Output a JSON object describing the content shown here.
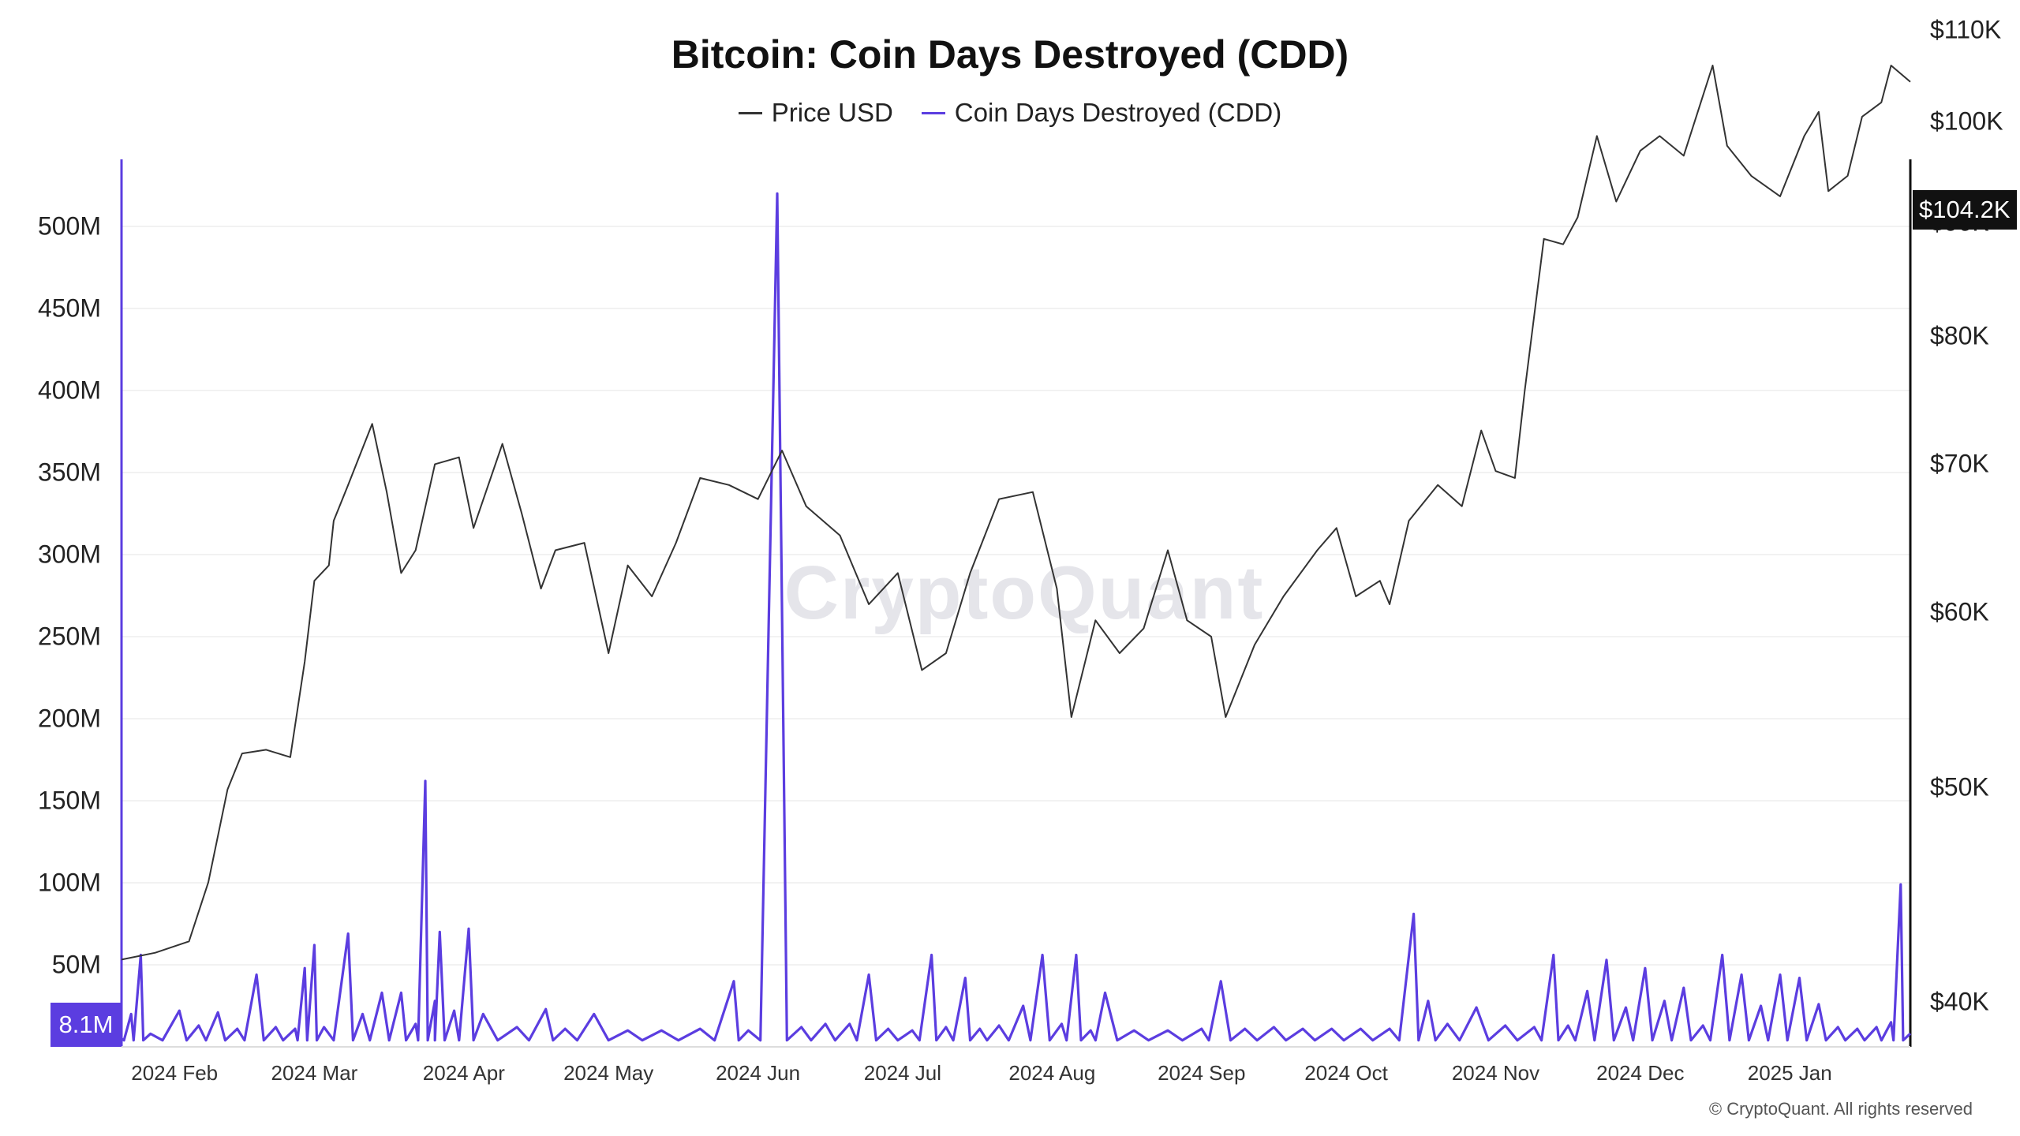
{
  "chart_data": {
    "type": "line",
    "title": "Bitcoin: Coin Days Destroyed (CDD)",
    "legend_position": "top-center",
    "grid": true,
    "x_ticks": [
      "2024 Feb",
      "2024 Mar",
      "2024 Apr",
      "2024 May",
      "2024 Jun",
      "2024 Jul",
      "2024 Aug",
      "2024 Sep",
      "2024 Oct",
      "2024 Nov",
      "2024 Dec",
      "2025 Jan"
    ],
    "xlim": [
      "2024-01-21",
      "2025-01-26"
    ],
    "left_axis": {
      "ticks": [
        "500M",
        "450M",
        "400M",
        "350M",
        "300M",
        "250M",
        "200M",
        "150M",
        "100M",
        "50M"
      ],
      "tick_values": [
        500000000,
        450000000,
        400000000,
        350000000,
        300000000,
        250000000,
        200000000,
        150000000,
        100000000,
        50000000
      ],
      "ylim": [
        0,
        550000000
      ]
    },
    "right_axis": {
      "scale": "log",
      "ticks": [
        "$110K",
        "$100K",
        "$90K",
        "$80K",
        "$70K",
        "$60K",
        "$50K",
        "$40K"
      ],
      "tick_values": [
        110000,
        100000,
        90000,
        80000,
        70000,
        60000,
        50000,
        40000
      ],
      "ylim": [
        37000,
        110000
      ]
    },
    "price_badge": "$104.2K",
    "cdd_badge": "8.1M",
    "series": [
      {
        "name": "Price USD",
        "color": "#333333",
        "axis": "right",
        "points": [
          [
            "2024-01-21",
            41800
          ],
          [
            "2024-01-28",
            42100
          ],
          [
            "2024-02-04",
            42600
          ],
          [
            "2024-02-08",
            45300
          ],
          [
            "2024-02-12",
            49900
          ],
          [
            "2024-02-15",
            51800
          ],
          [
            "2024-02-20",
            52000
          ],
          [
            "2024-02-25",
            51600
          ],
          [
            "2024-02-28",
            57000
          ],
          [
            "2024-03-01",
            62000
          ],
          [
            "2024-03-04",
            63000
          ],
          [
            "2024-03-05",
            66000
          ],
          [
            "2024-03-08",
            68500
          ],
          [
            "2024-03-13",
            73000
          ],
          [
            "2024-03-16",
            68000
          ],
          [
            "2024-03-19",
            62500
          ],
          [
            "2024-03-22",
            64000
          ],
          [
            "2024-03-26",
            70000
          ],
          [
            "2024-03-31",
            70500
          ],
          [
            "2024-04-03",
            65500
          ],
          [
            "2024-04-09",
            71500
          ],
          [
            "2024-04-13",
            66500
          ],
          [
            "2024-04-17",
            61500
          ],
          [
            "2024-04-20",
            64000
          ],
          [
            "2024-04-26",
            64500
          ],
          [
            "2024-05-01",
            57500
          ],
          [
            "2024-05-05",
            63000
          ],
          [
            "2024-05-10",
            61000
          ],
          [
            "2024-05-15",
            64500
          ],
          [
            "2024-05-20",
            69000
          ],
          [
            "2024-05-26",
            68500
          ],
          [
            "2024-06-01",
            67500
          ],
          [
            "2024-06-06",
            71000
          ],
          [
            "2024-06-11",
            67000
          ],
          [
            "2024-06-18",
            65000
          ],
          [
            "2024-06-24",
            60500
          ],
          [
            "2024-06-30",
            62500
          ],
          [
            "2024-07-05",
            56500
          ],
          [
            "2024-07-10",
            57500
          ],
          [
            "2024-07-15",
            62500
          ],
          [
            "2024-07-21",
            67500
          ],
          [
            "2024-07-28",
            68000
          ],
          [
            "2024-08-02",
            61500
          ],
          [
            "2024-08-05",
            53800
          ],
          [
            "2024-08-10",
            59500
          ],
          [
            "2024-08-15",
            57500
          ],
          [
            "2024-08-20",
            59000
          ],
          [
            "2024-08-25",
            64000
          ],
          [
            "2024-08-29",
            59500
          ],
          [
            "2024-09-03",
            58500
          ],
          [
            "2024-09-06",
            53800
          ],
          [
            "2024-09-12",
            58000
          ],
          [
            "2024-09-18",
            61000
          ],
          [
            "2024-09-25",
            64000
          ],
          [
            "2024-09-29",
            65500
          ],
          [
            "2024-10-03",
            61000
          ],
          [
            "2024-10-08",
            62000
          ],
          [
            "2024-10-10",
            60500
          ],
          [
            "2024-10-14",
            66000
          ],
          [
            "2024-10-20",
            68500
          ],
          [
            "2024-10-25",
            67000
          ],
          [
            "2024-10-29",
            72500
          ],
          [
            "2024-11-01",
            69500
          ],
          [
            "2024-11-05",
            69000
          ],
          [
            "2024-11-07",
            75500
          ],
          [
            "2024-11-11",
            88500
          ],
          [
            "2024-11-15",
            88000
          ],
          [
            "2024-11-18",
            90500
          ],
          [
            "2024-11-22",
            98500
          ],
          [
            "2024-11-26",
            92000
          ],
          [
            "2024-12-01",
            97000
          ],
          [
            "2024-12-05",
            98500
          ],
          [
            "2024-12-10",
            96500
          ],
          [
            "2024-12-16",
            106000
          ],
          [
            "2024-12-19",
            97500
          ],
          [
            "2024-12-24",
            94500
          ],
          [
            "2024-12-30",
            92500
          ],
          [
            "2025-01-04",
            98500
          ],
          [
            "2025-01-07",
            101000
          ],
          [
            "2025-01-09",
            93000
          ],
          [
            "2025-01-13",
            94500
          ],
          [
            "2025-01-16",
            100500
          ],
          [
            "2025-01-20",
            102000
          ],
          [
            "2025-01-22",
            106000
          ],
          [
            "2025-01-26",
            104200
          ]
        ]
      },
      {
        "name": "Coin Days Destroyed (CDD)",
        "color": "#5b3de0",
        "axis": "left",
        "baseline": 4000000,
        "points": [
          [
            "2024-01-21",
            5000000
          ],
          [
            "2024-01-23",
            20000000
          ],
          [
            "2024-01-25",
            56000000
          ],
          [
            "2024-01-27",
            8000000
          ],
          [
            "2024-02-02",
            22000000
          ],
          [
            "2024-02-06",
            13000000
          ],
          [
            "2024-02-10",
            21000000
          ],
          [
            "2024-02-14",
            11000000
          ],
          [
            "2024-02-18",
            44000000
          ],
          [
            "2024-02-22",
            12000000
          ],
          [
            "2024-02-26",
            11000000
          ],
          [
            "2024-02-28",
            48000000
          ],
          [
            "2024-03-01",
            62000000
          ],
          [
            "2024-03-03",
            12000000
          ],
          [
            "2024-03-08",
            69000000
          ],
          [
            "2024-03-11",
            20000000
          ],
          [
            "2024-03-15",
            33000000
          ],
          [
            "2024-03-19",
            33000000
          ],
          [
            "2024-03-22",
            14000000
          ],
          [
            "2024-03-24",
            162000000
          ],
          [
            "2024-03-26",
            28000000
          ],
          [
            "2024-03-27",
            70000000
          ],
          [
            "2024-03-30",
            22000000
          ],
          [
            "2024-04-02",
            72000000
          ],
          [
            "2024-04-05",
            20000000
          ],
          [
            "2024-04-12",
            12000000
          ],
          [
            "2024-04-18",
            23000000
          ],
          [
            "2024-04-22",
            11000000
          ],
          [
            "2024-04-28",
            20000000
          ],
          [
            "2024-05-05",
            10000000
          ],
          [
            "2024-05-12",
            10000000
          ],
          [
            "2024-05-20",
            11000000
          ],
          [
            "2024-05-27",
            40000000
          ],
          [
            "2024-05-30",
            10000000
          ],
          [
            "2024-06-05",
            520000000
          ],
          [
            "2024-06-10",
            12000000
          ],
          [
            "2024-06-15",
            14000000
          ],
          [
            "2024-06-20",
            14000000
          ],
          [
            "2024-06-24",
            44000000
          ],
          [
            "2024-06-28",
            11000000
          ],
          [
            "2024-07-03",
            10000000
          ],
          [
            "2024-07-07",
            56000000
          ],
          [
            "2024-07-10",
            12000000
          ],
          [
            "2024-07-14",
            42000000
          ],
          [
            "2024-07-17",
            11000000
          ],
          [
            "2024-07-21",
            13000000
          ],
          [
            "2024-07-26",
            25000000
          ],
          [
            "2024-07-30",
            56000000
          ],
          [
            "2024-08-03",
            14000000
          ],
          [
            "2024-08-06",
            56000000
          ],
          [
            "2024-08-09",
            10000000
          ],
          [
            "2024-08-12",
            33000000
          ],
          [
            "2024-08-18",
            10000000
          ],
          [
            "2024-08-25",
            10000000
          ],
          [
            "2024-09-01",
            11000000
          ],
          [
            "2024-09-05",
            40000000
          ],
          [
            "2024-09-10",
            11000000
          ],
          [
            "2024-09-16",
            12000000
          ],
          [
            "2024-09-22",
            11000000
          ],
          [
            "2024-09-28",
            11000000
          ],
          [
            "2024-10-04",
            11000000
          ],
          [
            "2024-10-10",
            11000000
          ],
          [
            "2024-10-15",
            81000000
          ],
          [
            "2024-10-18",
            28000000
          ],
          [
            "2024-10-22",
            14000000
          ],
          [
            "2024-10-28",
            24000000
          ],
          [
            "2024-11-03",
            13000000
          ],
          [
            "2024-11-09",
            12000000
          ],
          [
            "2024-11-13",
            56000000
          ],
          [
            "2024-11-16",
            13000000
          ],
          [
            "2024-11-20",
            34000000
          ],
          [
            "2024-11-24",
            53000000
          ],
          [
            "2024-11-28",
            24000000
          ],
          [
            "2024-12-02",
            48000000
          ],
          [
            "2024-12-06",
            28000000
          ],
          [
            "2024-12-10",
            36000000
          ],
          [
            "2024-12-14",
            13000000
          ],
          [
            "2024-12-18",
            56000000
          ],
          [
            "2024-12-22",
            44000000
          ],
          [
            "2024-12-26",
            25000000
          ],
          [
            "2024-12-30",
            44000000
          ],
          [
            "2025-01-03",
            42000000
          ],
          [
            "2025-01-07",
            26000000
          ],
          [
            "2025-01-11",
            12000000
          ],
          [
            "2025-01-15",
            11000000
          ],
          [
            "2025-01-19",
            12000000
          ],
          [
            "2025-01-22",
            15000000
          ],
          [
            "2025-01-24",
            99000000
          ],
          [
            "2025-01-26",
            8100000
          ]
        ]
      }
    ]
  },
  "watermark": "CryptoQuant",
  "copyright": "© CryptoQuant. All rights reserved"
}
